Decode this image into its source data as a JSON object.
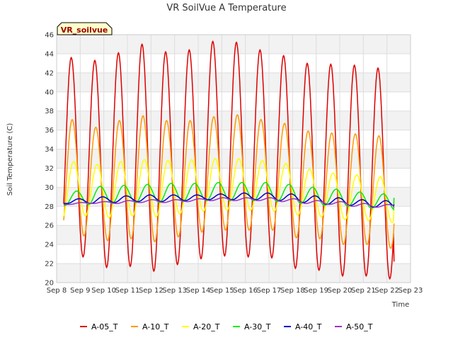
{
  "chart_data": {
    "type": "line",
    "title": "VR SoilVue A Temperature",
    "xlabel": "Time",
    "ylabel": "Soil Temperature (C)",
    "site_badge": "VR_soilvue",
    "x_range": [
      "Sep 8",
      "Sep 23"
    ],
    "x_ticks": [
      "Sep 8",
      "Sep 9",
      "Sep 10",
      "Sep 11",
      "Sep 12",
      "Sep 13",
      "Sep 14",
      "Sep 15",
      "Sep 16",
      "Sep 17",
      "Sep 18",
      "Sep 19",
      "Sep 20",
      "Sep 21",
      "Sep 22",
      "Sep 23"
    ],
    "ylim": [
      20,
      46
    ],
    "y_ticks": [
      20,
      22,
      24,
      26,
      28,
      30,
      32,
      34,
      36,
      38,
      40,
      42,
      44,
      46
    ],
    "grid": true,
    "legend_position": "bottom",
    "series": [
      {
        "name": "A-05_T",
        "color": "#dd0000",
        "day_max": [
          43.6,
          43.3,
          44.1,
          45.0,
          44.2,
          44.4,
          45.3,
          45.2,
          44.4,
          43.8,
          43.0,
          42.9,
          42.8,
          42.5,
          40.8
        ],
        "day_min": [
          22.1,
          22.7,
          21.6,
          21.7,
          21.2,
          21.9,
          22.5,
          22.8,
          22.7,
          22.6,
          21.5,
          21.3,
          20.7,
          20.7,
          20.4
        ],
        "end_value": 22.2
      },
      {
        "name": "A-10_T",
        "color": "#ff9900",
        "day_max": [
          37.1,
          36.3,
          37.0,
          37.5,
          37.0,
          37.0,
          37.4,
          37.6,
          37.1,
          36.7,
          35.9,
          35.7,
          35.6,
          35.4,
          34.4
        ],
        "day_min": [
          24.2,
          24.9,
          24.4,
          24.6,
          24.3,
          24.8,
          25.3,
          25.5,
          25.5,
          25.5,
          24.7,
          24.6,
          24.0,
          24.0,
          23.6
        ],
        "end_value": 26.2
      },
      {
        "name": "A-20_T",
        "color": "#ffff00",
        "day_max": [
          32.7,
          32.4,
          32.7,
          32.9,
          32.8,
          32.9,
          33.0,
          33.0,
          32.8,
          32.5,
          31.9,
          31.5,
          31.3,
          31.1,
          30.4
        ],
        "day_min": [
          26.6,
          27.0,
          26.8,
          27.0,
          26.9,
          27.2,
          27.5,
          27.6,
          27.6,
          27.5,
          27.1,
          26.9,
          26.6,
          26.5,
          26.3
        ],
        "end_value": 28.5
      },
      {
        "name": "A-30_T",
        "color": "#00ee00",
        "day_max": [
          29.6,
          30.1,
          30.2,
          30.3,
          30.4,
          30.4,
          30.5,
          30.5,
          30.5,
          30.3,
          30.0,
          29.8,
          29.5,
          29.3,
          29.0
        ],
        "day_min": [
          28.1,
          28.2,
          28.3,
          28.4,
          28.4,
          28.5,
          28.6,
          28.6,
          28.6,
          28.5,
          28.3,
          28.1,
          28.0,
          27.8,
          27.6
        ],
        "end_value": 28.9
      },
      {
        "name": "A-40_T",
        "color": "#0000cc",
        "day_max": [
          28.8,
          29.0,
          29.1,
          29.2,
          29.2,
          29.2,
          29.3,
          29.4,
          29.4,
          29.3,
          29.1,
          28.9,
          28.7,
          28.6,
          28.4
        ],
        "day_min": [
          28.3,
          28.3,
          28.4,
          28.5,
          28.5,
          28.6,
          28.7,
          28.7,
          28.7,
          28.6,
          28.4,
          28.2,
          28.1,
          27.9,
          27.8
        ],
        "end_value": 28.2
      },
      {
        "name": "A-50_T",
        "color": "#9933cc",
        "day_max": [
          28.4,
          28.5,
          28.6,
          28.7,
          28.7,
          28.8,
          28.9,
          28.9,
          28.9,
          28.8,
          28.6,
          28.5,
          28.3,
          28.2,
          28.0
        ],
        "day_min": [
          28.2,
          28.3,
          28.3,
          28.4,
          28.4,
          28.5,
          28.6,
          28.6,
          28.6,
          28.5,
          28.3,
          28.2,
          28.0,
          27.9,
          27.8
        ],
        "end_value": 27.9
      }
    ]
  }
}
